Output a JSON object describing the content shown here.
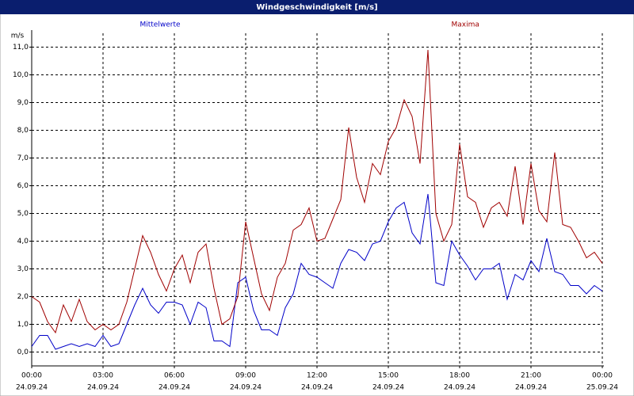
{
  "chart_data": {
    "type": "line",
    "title": "Windgeschwindigkeit [m/s]",
    "y_label": "m/s",
    "x": [
      0,
      20,
      40,
      60,
      80,
      100,
      120,
      140,
      160,
      180,
      200,
      220,
      240,
      260,
      280,
      300,
      320,
      340,
      360,
      380,
      400,
      420,
      440,
      460,
      480,
      500,
      520,
      540,
      560,
      580,
      600,
      620,
      640,
      660,
      680,
      700,
      720,
      740,
      760,
      780,
      800,
      820,
      840,
      860,
      880,
      900,
      920,
      940,
      960,
      980,
      1000,
      1020,
      1040,
      1060,
      1080,
      1100,
      1120,
      1140,
      1160,
      1180,
      1200,
      1220,
      1240,
      1260,
      1280,
      1300,
      1320,
      1340,
      1360,
      1380,
      1400,
      1420,
      1440
    ],
    "xlim": [
      0,
      1440
    ],
    "xticks": [
      {
        "value": 0,
        "label": "00:00"
      },
      {
        "value": 180,
        "label": "03:00"
      },
      {
        "value": 360,
        "label": "06:00"
      },
      {
        "value": 540,
        "label": "09:00"
      },
      {
        "value": 720,
        "label": "12:00"
      },
      {
        "value": 900,
        "label": "15:00"
      },
      {
        "value": 1080,
        "label": "18:00"
      },
      {
        "value": 1260,
        "label": "21:00"
      },
      {
        "value": 1440,
        "label": "00:00"
      }
    ],
    "xtick_dates": [
      "24.09.24",
      "24.09.24",
      "24.09.24",
      "24.09.24",
      "24.09.24",
      "24.09.24",
      "24.09.24",
      "24.09.24",
      "25.09.24"
    ],
    "ylim": [
      -0.5,
      11.5
    ],
    "yticks": [
      {
        "value": 0,
        "label": "0,0"
      },
      {
        "value": 1,
        "label": "1,0"
      },
      {
        "value": 2,
        "label": "2,0"
      },
      {
        "value": 3,
        "label": "3,0"
      },
      {
        "value": 4,
        "label": "4,0"
      },
      {
        "value": 5,
        "label": "5,0"
      },
      {
        "value": 6,
        "label": "6,0"
      },
      {
        "value": 7,
        "label": "7,0"
      },
      {
        "value": 8,
        "label": "8,0"
      },
      {
        "value": 9,
        "label": "9,0"
      },
      {
        "value": 10,
        "label": "10,0"
      },
      {
        "value": 11,
        "label": "11,0"
      }
    ],
    "grid": true,
    "series": [
      {
        "name": "Mittelwerte",
        "color": "#0000c8",
        "values": [
          0.2,
          0.6,
          0.6,
          0.1,
          0.2,
          0.3,
          0.2,
          0.3,
          0.2,
          0.6,
          0.2,
          0.3,
          1.0,
          1.7,
          2.3,
          1.7,
          1.4,
          1.8,
          1.8,
          1.7,
          1.0,
          1.8,
          1.6,
          0.4,
          0.4,
          0.2,
          2.5,
          2.7,
          1.5,
          0.8,
          0.8,
          0.6,
          1.6,
          2.1,
          3.2,
          2.8,
          2.7,
          2.5,
          2.3,
          3.2,
          3.7,
          3.6,
          3.3,
          3.9,
          4.0,
          4.7,
          5.2,
          5.4,
          4.3,
          3.9,
          5.7,
          2.5,
          2.4,
          4.0,
          3.5,
          3.1,
          2.6,
          3.0,
          3.0,
          3.2,
          1.9,
          2.8,
          2.6,
          3.3,
          2.9,
          4.1,
          2.9,
          2.8,
          2.4,
          2.4,
          2.1,
          2.4,
          2.2
        ]
      },
      {
        "name": "Maxima",
        "color": "#a00000",
        "values": [
          2.0,
          1.8,
          1.1,
          0.7,
          1.7,
          1.1,
          1.9,
          1.1,
          0.8,
          1.0,
          0.8,
          1.0,
          1.8,
          3.0,
          4.2,
          3.6,
          2.8,
          2.2,
          3.0,
          3.5,
          2.5,
          3.6,
          3.9,
          2.3,
          1.0,
          1.2,
          2.0,
          4.7,
          3.4,
          2.1,
          1.5,
          2.7,
          3.2,
          4.4,
          4.6,
          5.2,
          4.0,
          4.1,
          4.8,
          5.5,
          8.1,
          6.3,
          5.4,
          6.8,
          6.4,
          7.6,
          8.1,
          9.1,
          8.5,
          6.8,
          10.9,
          5.0,
          4.0,
          4.6,
          7.5,
          5.6,
          5.4,
          4.5,
          5.2,
          5.4,
          4.9,
          6.7,
          4.6,
          6.8,
          5.1,
          4.7,
          7.2,
          4.6,
          4.5,
          4.0,
          3.4,
          3.6,
          3.2
        ]
      }
    ]
  }
}
